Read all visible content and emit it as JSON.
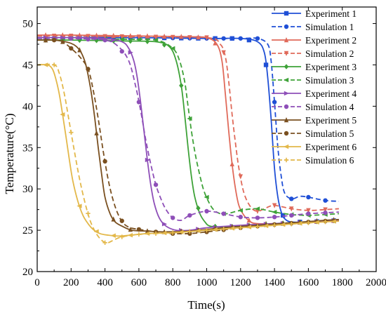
{
  "chart_data": {
    "type": "line",
    "xlabel": "Time(s)",
    "ylabel": "Temperature(°C)",
    "xlim": [
      0,
      2000
    ],
    "ylim": [
      20,
      52
    ],
    "xticks": [
      0,
      200,
      400,
      600,
      800,
      1000,
      1200,
      1400,
      1600,
      1800,
      2000
    ],
    "yticks": [
      20,
      25,
      30,
      35,
      40,
      45,
      50
    ],
    "grid": false,
    "legend_position": "top-right",
    "series": [
      {
        "name": "Experiment 1",
        "color": "#1f4fd6",
        "dash": "solid",
        "marker": "square",
        "x": [
          0,
          200,
          600,
          1000,
          1200,
          1300,
          1340,
          1360,
          1380,
          1400,
          1420,
          1440,
          1460,
          1500,
          1600,
          1700,
          1780
        ],
        "y": [
          48.3,
          48.3,
          48.3,
          48.2,
          48.2,
          47.8,
          46.5,
          43.5,
          38.5,
          32.5,
          29.0,
          27.2,
          26.4,
          26.0,
          26.0,
          26.1,
          26.2
        ]
      },
      {
        "name": "Simulation 1",
        "color": "#1f4fd6",
        "dash": "dash",
        "marker": "circle",
        "x": [
          0,
          200,
          600,
          1000,
          1200,
          1300,
          1360,
          1380,
          1400,
          1420,
          1440,
          1460,
          1500,
          1550,
          1600,
          1700,
          1780
        ],
        "y": [
          48.3,
          48.3,
          48.3,
          48.2,
          48.2,
          48.2,
          47.5,
          45.5,
          40.5,
          35.0,
          31.5,
          29.5,
          28.8,
          29.1,
          29.0,
          28.6,
          28.5
        ]
      },
      {
        "name": "Experiment 2",
        "color": "#e06a5a",
        "dash": "solid",
        "marker": "triangle-up",
        "x": [
          0,
          200,
          600,
          900,
          1000,
          1060,
          1090,
          1110,
          1130,
          1150,
          1170,
          1190,
          1220,
          1260,
          1300,
          1400,
          1500,
          1600,
          1700,
          1780
        ],
        "y": [
          48.6,
          48.6,
          48.5,
          48.4,
          48.3,
          47.5,
          45.5,
          41.5,
          37.0,
          33.0,
          30.0,
          28.0,
          26.8,
          26.0,
          25.8,
          25.8,
          25.9,
          26.0,
          26.1,
          26.2
        ]
      },
      {
        "name": "Simulation 2",
        "color": "#e06a5a",
        "dash": "dash",
        "marker": "triangle-down",
        "x": [
          0,
          200,
          600,
          1000,
          1080,
          1110,
          1130,
          1150,
          1170,
          1190,
          1220,
          1260,
          1300,
          1350,
          1400,
          1500,
          1600,
          1700,
          1780
        ],
        "y": [
          48.5,
          48.5,
          48.4,
          48.3,
          47.5,
          46.0,
          43.0,
          39.0,
          35.5,
          32.5,
          29.5,
          27.8,
          27.3,
          27.7,
          28.0,
          27.6,
          27.4,
          27.5,
          27.6
        ]
      },
      {
        "name": "Experiment 3",
        "color": "#3ea238",
        "dash": "solid",
        "marker": "diamond",
        "x": [
          0,
          200,
          500,
          700,
          780,
          820,
          850,
          870,
          890,
          910,
          930,
          960,
          990,
          1020,
          1100,
          1200,
          1400,
          1600,
          1780
        ],
        "y": [
          48.0,
          48.0,
          47.9,
          47.8,
          47.2,
          45.5,
          42.5,
          39.0,
          35.0,
          31.5,
          29.0,
          27.0,
          26.0,
          25.5,
          25.4,
          25.5,
          25.8,
          26.0,
          26.2
        ]
      },
      {
        "name": "Simulation 3",
        "color": "#3ea238",
        "dash": "dash",
        "marker": "triangle-left",
        "x": [
          0,
          200,
          500,
          700,
          800,
          840,
          870,
          890,
          910,
          930,
          950,
          980,
          1010,
          1040,
          1080,
          1120,
          1200,
          1300,
          1400,
          1500,
          1600,
          1700,
          1780
        ],
        "y": [
          48.2,
          48.2,
          48.1,
          48.0,
          47.0,
          45.5,
          43.0,
          40.0,
          37.0,
          34.5,
          32.5,
          30.0,
          28.5,
          27.5,
          27.0,
          27.0,
          27.4,
          27.6,
          27.2,
          26.9,
          26.8,
          26.9,
          27.0
        ]
      },
      {
        "name": "Experiment 4",
        "color": "#8e4fb8",
        "dash": "solid",
        "marker": "triangle-right",
        "x": [
          0,
          200,
          400,
          500,
          540,
          570,
          590,
          610,
          630,
          650,
          670,
          690,
          720,
          760,
          820,
          900,
          1000,
          1200,
          1400,
          1600,
          1780
        ],
        "y": [
          48.3,
          48.3,
          48.2,
          47.8,
          47.0,
          45.5,
          43.5,
          40.5,
          37.0,
          33.5,
          30.5,
          28.3,
          26.5,
          25.5,
          25.0,
          25.0,
          25.3,
          25.6,
          25.8,
          26.0,
          26.2
        ]
      },
      {
        "name": "Simulation 4",
        "color": "#8e4fb8",
        "dash": "dash",
        "marker": "circle",
        "x": [
          0,
          200,
          400,
          480,
          540,
          580,
          610,
          640,
          670,
          700,
          730,
          760,
          800,
          850,
          900,
          1000,
          1100,
          1200,
          1300,
          1400,
          1500,
          1600,
          1780
        ],
        "y": [
          48.2,
          48.2,
          48.0,
          47.2,
          45.5,
          42.5,
          39.5,
          36.0,
          33.0,
          30.5,
          28.8,
          27.5,
          26.5,
          26.2,
          26.8,
          27.3,
          27.0,
          26.6,
          26.5,
          26.6,
          26.8,
          27.0,
          27.2
        ]
      },
      {
        "name": "Experiment 5",
        "color": "#7a5020",
        "dash": "solid",
        "marker": "triangle-up",
        "x": [
          0,
          100,
          200,
          250,
          280,
          300,
          320,
          340,
          360,
          380,
          400,
          430,
          460,
          500,
          560,
          650,
          750,
          900,
          1100,
          1300,
          1500,
          1700,
          1780
        ],
        "y": [
          48.0,
          48.0,
          47.6,
          46.8,
          45.5,
          43.8,
          41.5,
          38.5,
          35.0,
          31.8,
          29.0,
          27.0,
          26.0,
          25.5,
          25.0,
          24.9,
          24.8,
          24.9,
          25.3,
          25.6,
          25.9,
          26.2,
          26.3
        ]
      },
      {
        "name": "Simulation 5",
        "color": "#7a5020",
        "dash": "dash",
        "marker": "circle",
        "x": [
          0,
          100,
          150,
          200,
          250,
          300,
          330,
          360,
          390,
          420,
          450,
          480,
          510,
          550,
          600,
          700,
          800,
          900,
          1000,
          1200,
          1400,
          1600,
          1780
        ],
        "y": [
          48.0,
          48.0,
          47.8,
          47.0,
          46.0,
          44.5,
          42.0,
          38.5,
          34.5,
          31.0,
          28.5,
          26.8,
          25.8,
          25.3,
          25.1,
          24.8,
          24.6,
          24.6,
          24.8,
          25.3,
          25.7,
          26.0,
          26.2
        ]
      },
      {
        "name": "Experiment 6",
        "color": "#e3b84a",
        "dash": "solid",
        "marker": "triangle-left",
        "x": [
          0,
          60,
          90,
          110,
          130,
          150,
          170,
          190,
          210,
          240,
          270,
          300,
          330,
          370,
          420,
          480,
          550,
          650,
          800,
          1000,
          1200,
          1400,
          1600,
          1780
        ],
        "y": [
          45.0,
          45.0,
          44.5,
          43.3,
          41.5,
          39.0,
          36.3,
          33.5,
          31.0,
          28.5,
          26.8,
          25.8,
          25.1,
          24.6,
          24.4,
          24.3,
          24.4,
          24.6,
          24.7,
          25.0,
          25.3,
          25.6,
          25.9,
          26.1
        ]
      },
      {
        "name": "Simulation 6",
        "color": "#e3b84a",
        "dash": "dash",
        "marker": "plus",
        "x": [
          0,
          100,
          130,
          160,
          190,
          220,
          250,
          280,
          310,
          340,
          370,
          400,
          420,
          450,
          500,
          600,
          700,
          800,
          1000,
          1200,
          1400,
          1600,
          1780
        ],
        "y": [
          45.0,
          45.0,
          44.0,
          41.5,
          38.0,
          34.5,
          31.2,
          28.5,
          26.3,
          24.9,
          24.0,
          23.5,
          23.5,
          23.8,
          24.2,
          24.5,
          24.6,
          24.7,
          25.0,
          25.3,
          25.6,
          25.9,
          26.1
        ]
      }
    ]
  }
}
